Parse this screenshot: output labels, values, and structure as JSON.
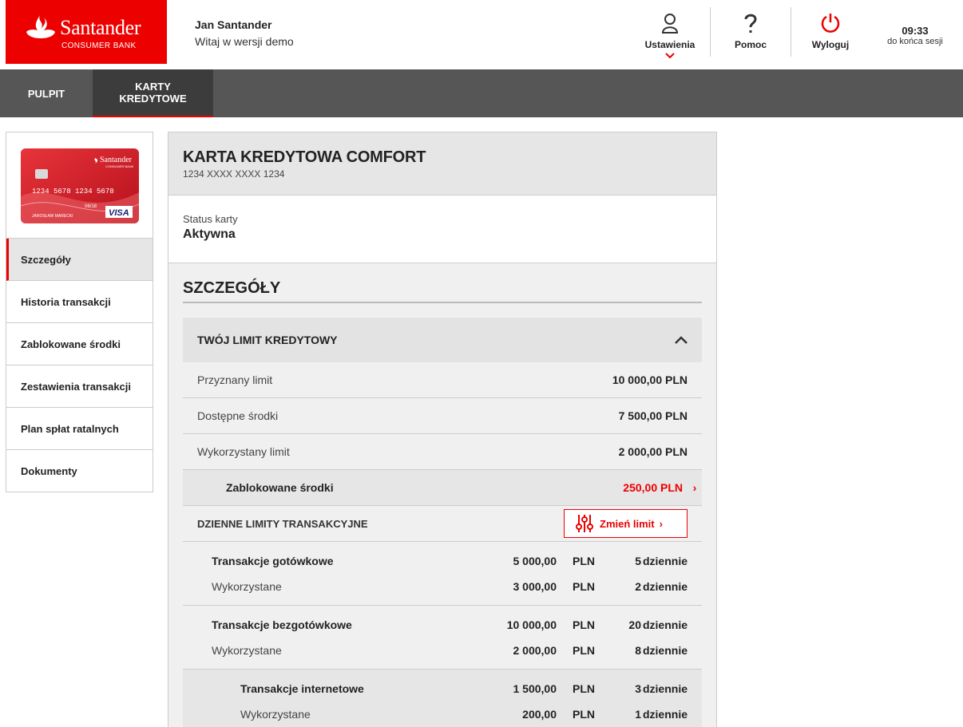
{
  "brand": {
    "name": "Santander",
    "sub": "CONSUMER BANK",
    "color": "#ec0000"
  },
  "user": {
    "name": "Jan Santander",
    "welcome": "Witaj w wersji demo"
  },
  "header": {
    "settings": {
      "label": "Ustawienia",
      "icon": "user-icon"
    },
    "help": {
      "label": "Pomoc",
      "icon": "question-icon"
    },
    "logout": {
      "label": "Wyloguj",
      "icon": "power-icon"
    },
    "session_time": "09:33",
    "session_text": "do końca sesji"
  },
  "nav": {
    "tabs": [
      {
        "label": "PULPIT"
      },
      {
        "label": "KARTY KREDYTOWE",
        "active": true
      }
    ]
  },
  "card": {
    "number_top": "1234 5678 1234 5678",
    "expiry": "06/18",
    "holder": "JAROSŁAW MARECKI",
    "network": "VISA"
  },
  "sidebar": {
    "items": [
      {
        "label": "Szczegóły",
        "active": true
      },
      {
        "label": "Historia transakcji"
      },
      {
        "label": "Zablokowane środki"
      },
      {
        "label": "Zestawienia transakcji"
      },
      {
        "label": "Plan spłat ratalnych"
      },
      {
        "label": "Dokumenty"
      }
    ]
  },
  "main": {
    "title": "KARTA KREDYTOWA COMFORT",
    "number": "1234 XXXX XXXX 1234",
    "status_label": "Status karty",
    "status_value": "Aktywna",
    "section_title": "SZCZEGÓŁY",
    "limit_title": "TWÓJ LIMIT KREDYTOWY",
    "rows": [
      {
        "label": "Przyznany limit",
        "value": "10 000,00 PLN"
      },
      {
        "label": "Dostępne środki",
        "value": "7 500,00 PLN"
      },
      {
        "label": "Wykorzystany limit",
        "value": "2 000,00 PLN"
      }
    ],
    "blocked": {
      "label": "Zablokowane środki",
      "value": "250,00 PLN"
    },
    "daily_title": "DZIENNE LIMITY TRANSAKCYJNE",
    "change_limit": "Zmień limit",
    "groups": [
      {
        "name": "Transakcje gotówkowe",
        "amount": "5 000,00",
        "currency": "PLN",
        "count": "5",
        "period": "dziennie",
        "used_label": "Wykorzystane",
        "used_amount": "3 000,00",
        "used_currency": "PLN",
        "used_count": "2",
        "used_period": "dziennie"
      },
      {
        "name": "Transakcje bezgotówkowe",
        "amount": "10 000,00",
        "currency": "PLN",
        "count": "20",
        "period": "dziennie",
        "used_label": "Wykorzystane",
        "used_amount": "2 000,00",
        "used_currency": "PLN",
        "used_count": "8",
        "used_period": "dziennie"
      },
      {
        "name": "Transakcje internetowe",
        "amount": "1 500,00",
        "currency": "PLN",
        "count": "3",
        "period": "dziennie",
        "used_label": "Wykorzystane",
        "used_amount": "200,00",
        "used_currency": "PLN",
        "used_count": "1",
        "used_period": "dziennie"
      }
    ]
  }
}
